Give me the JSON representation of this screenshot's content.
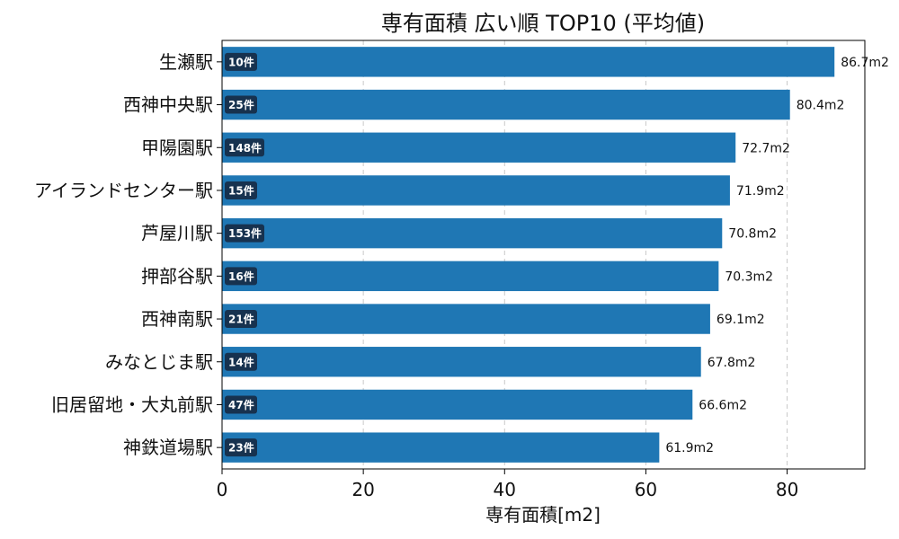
{
  "chart_data": {
    "type": "bar",
    "orientation": "horizontal",
    "title": "専有面積 広い順 TOP10 (平均値)",
    "xlabel": "専有面積[m2]",
    "ylabel": "",
    "xlim": [
      0,
      91
    ],
    "xticks": [
      0,
      20,
      40,
      60,
      80
    ],
    "grid": "x-dashed",
    "bar_color": "#1f77b4",
    "badge_color": "#17324f",
    "value_suffix": "m2",
    "categories": [
      "生瀬駅",
      "西神中央駅",
      "甲陽園駅",
      "アイランドセンター駅",
      "芦屋川駅",
      "押部谷駅",
      "西神南駅",
      "みなとじま駅",
      "旧居留地・大丸前駅",
      "神鉄道場駅"
    ],
    "values": [
      86.7,
      80.4,
      72.7,
      71.9,
      70.8,
      70.3,
      69.1,
      67.8,
      66.6,
      61.9
    ],
    "value_labels": [
      "86.7m2",
      "80.4m2",
      "72.7m2",
      "71.9m2",
      "70.8m2",
      "70.3m2",
      "69.1m2",
      "67.8m2",
      "66.6m2",
      "61.9m2"
    ],
    "count_labels": [
      "10件",
      "25件",
      "148件",
      "15件",
      "153件",
      "16件",
      "21件",
      "14件",
      "47件",
      "23件"
    ]
  }
}
